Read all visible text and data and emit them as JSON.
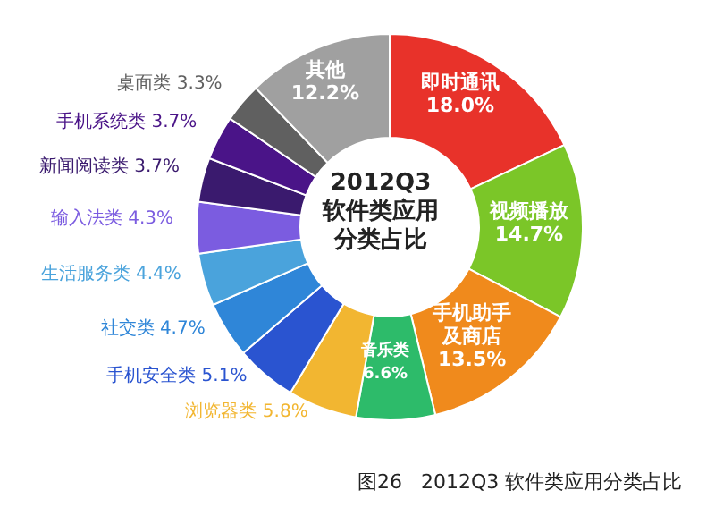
{
  "chart_data": {
    "type": "donut",
    "title": "2012Q3 软件类应用分类占比",
    "categories": [
      "即时通讯",
      "视频播放",
      "手机助手及商店",
      "音乐类",
      "浏览器类",
      "手机安全类",
      "社交类",
      "生活服务类",
      "输入法类",
      "新闻阅读类",
      "手机系统类",
      "桌面类",
      "其他"
    ],
    "values": [
      18.0,
      14.7,
      13.5,
      6.6,
      5.8,
      5.1,
      4.7,
      4.4,
      4.3,
      3.7,
      3.7,
      3.3,
      12.2
    ],
    "value_labels": [
      "18.0%",
      "14.7%",
      "13.5%",
      "6.6%",
      "5.8%",
      "5.1%",
      "4.7%",
      "4.4%",
      "4.3%",
      "3.7%",
      "3.7%",
      "3.3%",
      "12.2%"
    ],
    "colors": [
      "#e8322a",
      "#7bc628",
      "#f08a1c",
      "#2dbb6a",
      "#f2b631",
      "#2a54d0",
      "#2f86d8",
      "#4aa3dc",
      "#7b5ce0",
      "#3a1a6e",
      "#4a1488",
      "#606060",
      "#a0a0a0"
    ],
    "annotations": [
      "图26   2012Q3 软件类应用分类占比"
    ]
  }
}
